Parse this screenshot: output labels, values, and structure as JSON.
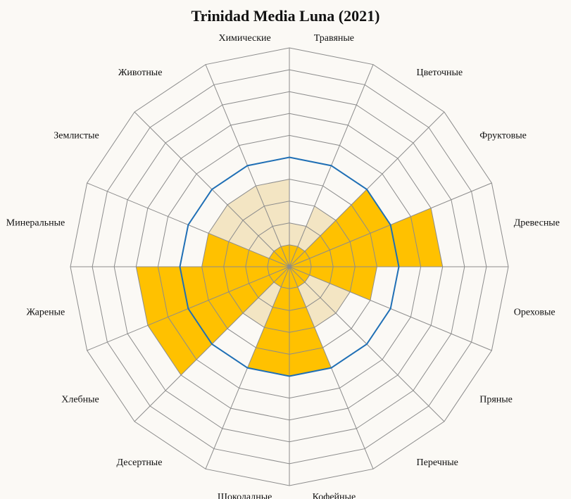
{
  "chart_data": {
    "type": "polar-area",
    "title": "Trinidad Media Luna (2021)",
    "rings": 10,
    "rmax": 10,
    "reference_level": 5,
    "categories": [
      "Травяные",
      "Цветочные",
      "Фруктовые",
      "Древесные",
      "Ореховые",
      "Пряные",
      "Перечные",
      "Кофейные",
      "Шоколадные",
      "Десертные",
      "Хлебные",
      "Жареные",
      "Минеральные",
      "Землистые",
      "Животные",
      "Химические"
    ],
    "series": [
      {
        "values": [
          1,
          1,
          5,
          7,
          4,
          1,
          1,
          5,
          5,
          1,
          7,
          7,
          4,
          1,
          1,
          1
        ]
      },
      {
        "values": [
          2,
          3,
          3,
          3,
          3,
          3,
          3,
          3,
          3,
          3,
          3,
          3,
          4,
          4,
          4,
          4
        ]
      }
    ],
    "colors": {
      "filled": "#ffc100",
      "background_area": "#f3e5c3",
      "reference_ring": "#1f6fb5",
      "grid": "#8c8c8c"
    }
  }
}
